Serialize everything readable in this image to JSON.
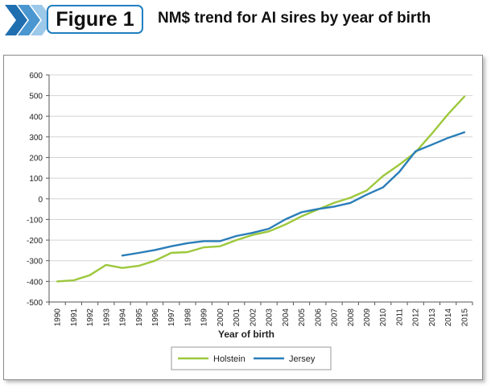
{
  "figure": {
    "label": "Figure 1",
    "title": "NM$ trend for AI sires by year of birth"
  },
  "colors": {
    "holstein": "#9dc83c",
    "jersey": "#2a7db8",
    "accent": "#1f7fc0"
  },
  "chart_data": {
    "type": "line",
    "title": "NM$ trend for AI sires by year of birth",
    "xlabel": "Year of birth",
    "ylabel": "",
    "ylim": [
      -500,
      600
    ],
    "yticks": [
      600,
      500,
      400,
      300,
      200,
      100,
      0,
      -100,
      -200,
      -300,
      -400,
      -500
    ],
    "categories": [
      "1990",
      "1991",
      "1992",
      "1993",
      "1994",
      "1995",
      "1996",
      "1997",
      "1998",
      "1999",
      "2000",
      "2001",
      "2002",
      "2003",
      "2004",
      "2005",
      "2006",
      "2007",
      "2008",
      "2009",
      "2010",
      "2011",
      "2012",
      "2013",
      "2014",
      "2015"
    ],
    "grid": true,
    "legend": "bottom-center",
    "series": [
      {
        "name": "Holstein",
        "color": "#9dc83c",
        "values": [
          -400,
          -395,
          -370,
          -320,
          -335,
          -325,
          -300,
          -262,
          -258,
          -235,
          -230,
          -200,
          -175,
          -158,
          -125,
          -85,
          -52,
          -20,
          5,
          40,
          110,
          165,
          225,
          315,
          410,
          495
        ]
      },
      {
        "name": "Jersey",
        "color": "#2a7db8",
        "values": [
          null,
          null,
          null,
          null,
          -275,
          -262,
          -248,
          -230,
          -215,
          -205,
          -205,
          -180,
          -165,
          -145,
          -100,
          -65,
          -50,
          -38,
          -20,
          20,
          55,
          130,
          230,
          262,
          295,
          322
        ]
      }
    ]
  }
}
